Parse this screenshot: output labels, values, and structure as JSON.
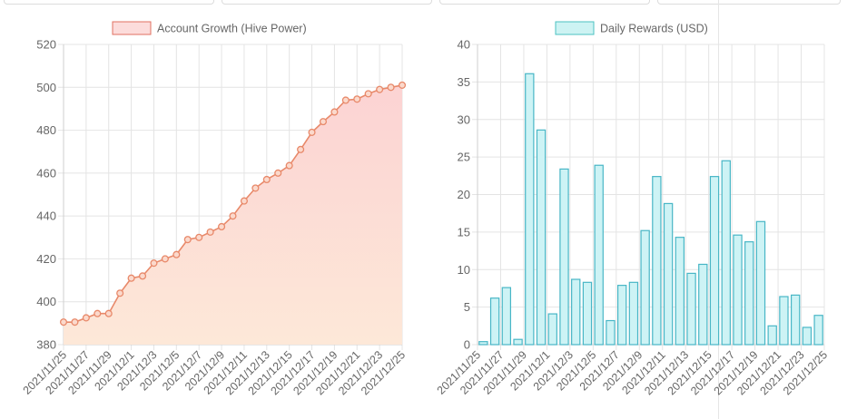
{
  "charts": [
    {
      "legend_label": "Account Growth (Hive Power)",
      "legend_fill": "#fcdcdb",
      "legend_stroke": "#e07060"
    },
    {
      "legend_label": "Daily Rewards (USD)",
      "legend_fill": "#cdf3f3",
      "legend_stroke": "#4cc2c2"
    }
  ],
  "chart_data": [
    {
      "type": "area",
      "legend": "Account Growth (Hive Power)",
      "x": [
        "2021/11/25",
        "2021/11/26",
        "2021/11/27",
        "2021/11/28",
        "2021/11/29",
        "2021/11/30",
        "2021/12/1",
        "2021/12/2",
        "2021/12/3",
        "2021/12/4",
        "2021/12/5",
        "2021/12/6",
        "2021/12/7",
        "2021/12/8",
        "2021/12/9",
        "2021/12/10",
        "2021/12/11",
        "2021/12/12",
        "2021/12/13",
        "2021/12/14",
        "2021/12/15",
        "2021/12/16",
        "2021/12/17",
        "2021/12/18",
        "2021/12/19",
        "2021/12/20",
        "2021/12/21",
        "2021/12/22",
        "2021/12/23",
        "2021/12/24",
        "2021/12/25"
      ],
      "x_tick_labels": [
        "2021/11/25",
        "2021/11/27",
        "2021/11/29",
        "2021/12/1",
        "2021/12/3",
        "2021/12/5",
        "2021/12/7",
        "2021/12/9",
        "2021/12/11",
        "2021/12/13",
        "2021/12/15",
        "2021/12/17",
        "2021/12/19",
        "2021/12/21",
        "2021/12/23",
        "2021/12/25"
      ],
      "values": [
        390.5,
        390.5,
        392.5,
        394.5,
        394.5,
        404,
        411,
        412,
        418,
        420,
        422,
        429,
        430,
        432.5,
        435,
        440,
        447,
        453,
        457,
        460,
        463.5,
        471,
        479,
        484,
        488.5,
        494,
        494.5,
        497,
        499,
        500,
        501
      ],
      "ylim": [
        380,
        520
      ],
      "y_ticks": [
        380,
        400,
        420,
        440,
        460,
        480,
        500,
        520
      ],
      "grid": true,
      "legend_position": "top-center",
      "line_color": "#e8896a",
      "fill_top": "#fcd3d3",
      "fill_bottom": "#fde8d8"
    },
    {
      "type": "bar",
      "legend": "Daily Rewards (USD)",
      "categories": [
        "2021/11/25",
        "2021/11/26",
        "2021/11/27",
        "2021/11/28",
        "2021/11/29",
        "2021/11/30",
        "2021/12/1",
        "2021/12/2",
        "2021/12/3",
        "2021/12/4",
        "2021/12/5",
        "2021/12/6",
        "2021/12/7",
        "2021/12/8",
        "2021/12/9",
        "2021/12/10",
        "2021/12/11",
        "2021/12/12",
        "2021/12/13",
        "2021/12/14",
        "2021/12/15",
        "2021/12/16",
        "2021/12/17",
        "2021/12/18",
        "2021/12/19",
        "2021/12/20",
        "2021/12/21",
        "2021/12/22",
        "2021/12/23",
        "2021/12/24",
        "2021/12/25"
      ],
      "x_tick_labels": [
        "2021/11/25",
        "2021/11/27",
        "2021/11/29",
        "2021/12/1",
        "2021/12/3",
        "2021/12/5",
        "2021/12/7",
        "2021/12/9",
        "2021/12/11",
        "2021/12/13",
        "2021/12/15",
        "2021/12/17",
        "2021/12/19",
        "2021/12/21",
        "2021/12/23",
        "2021/12/25"
      ],
      "values": [
        0.4,
        6.2,
        7.6,
        0.7,
        36.1,
        28.6,
        4.1,
        23.4,
        8.7,
        8.3,
        23.9,
        3.2,
        7.9,
        8.3,
        15.2,
        22.4,
        18.8,
        14.3,
        9.5,
        10.7,
        22.4,
        24.5,
        14.6,
        13.7,
        16.4,
        2.5,
        6.4,
        6.6,
        2.3,
        3.9,
        null
      ],
      "ylim": [
        0,
        40
      ],
      "y_ticks": [
        0,
        5,
        10,
        15,
        20,
        25,
        30,
        35,
        40
      ],
      "grid": true,
      "legend_position": "top-center",
      "bar_fill": "#cdf3f5",
      "bar_stroke": "#48b6c6"
    }
  ]
}
